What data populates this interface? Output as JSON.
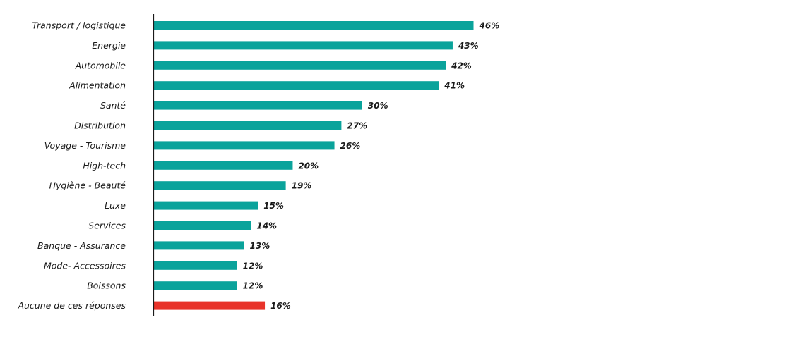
{
  "chart_data": {
    "type": "bar",
    "orientation": "horizontal",
    "categories": [
      "Transport / logistique",
      "Energie",
      "Automobile",
      "Alimentation",
      "Santé",
      "Distribution",
      "Voyage - Tourisme",
      "High-tech",
      "Hygiène - Beauté",
      "Luxe",
      "Services",
      "Banque - Assurance",
      "Mode- Accessoires",
      "Boissons",
      "Aucune de ces réponses"
    ],
    "values": [
      46,
      43,
      42,
      41,
      30,
      27,
      26,
      20,
      19,
      15,
      14,
      13,
      12,
      12,
      16
    ],
    "value_labels": [
      "46%",
      "43%",
      "42%",
      "41%",
      "30%",
      "27%",
      "26%",
      "20%",
      "19%",
      "15%",
      "14%",
      "13%",
      "12%",
      "12%",
      "16%"
    ],
    "bar_colors": [
      "#0aa39b",
      "#0aa39b",
      "#0aa39b",
      "#0aa39b",
      "#0aa39b",
      "#0aa39b",
      "#0aa39b",
      "#0aa39b",
      "#0aa39b",
      "#0aa39b",
      "#0aa39b",
      "#0aa39b",
      "#0aa39b",
      "#0aa39b",
      "#e8332a"
    ],
    "xlim": [
      0,
      46
    ],
    "grid": false,
    "legend": "none",
    "title": "",
    "xlabel": "",
    "ylabel": ""
  },
  "colors": {
    "primary_bar": "#0aa39b",
    "highlight_bar": "#e8332a",
    "axis": "#1a1a1a",
    "text": "#1a1a1a"
  }
}
